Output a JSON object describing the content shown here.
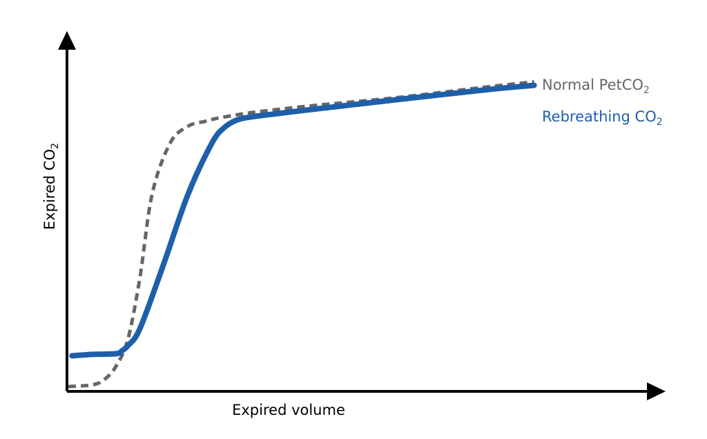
{
  "chart_data": {
    "type": "line",
    "title": "",
    "xlabel": "Expired volume",
    "ylabel": {
      "main": "Expired CO",
      "sub": "2"
    },
    "xlim": [
      0,
      100
    ],
    "ylim": [
      0,
      100
    ],
    "axis_ticks": "none",
    "grid": false,
    "legend": "right",
    "series": [
      {
        "name": {
          "main": "Normal PetCO",
          "sub": "2"
        },
        "color": "#666666",
        "style": "dashed",
        "x": [
          0,
          4,
          6,
          8,
          10,
          12,
          14,
          17,
          20,
          23,
          25,
          28,
          31,
          40,
          55,
          70,
          78
        ],
        "y": [
          1,
          1.5,
          3,
          7,
          15,
          33,
          57,
          72,
          77,
          78.5,
          79.4,
          80.3,
          81.1,
          82.9,
          85.4,
          88.5,
          90
        ]
      },
      {
        "name": {
          "main": "Rebreathing CO",
          "sub": "2"
        },
        "color": "#1E5FAA",
        "style": "solid",
        "x": [
          0.6,
          4,
          8,
          9,
          10,
          12,
          16,
          20,
          24,
          26,
          28,
          30,
          33,
          40,
          55,
          70,
          78
        ],
        "y": [
          10,
          10.4,
          10.6,
          11.5,
          13,
          18,
          37,
          57,
          72,
          76.5,
          78.7,
          79.6,
          80.3,
          81.8,
          84.8,
          87.7,
          89
        ]
      }
    ]
  }
}
